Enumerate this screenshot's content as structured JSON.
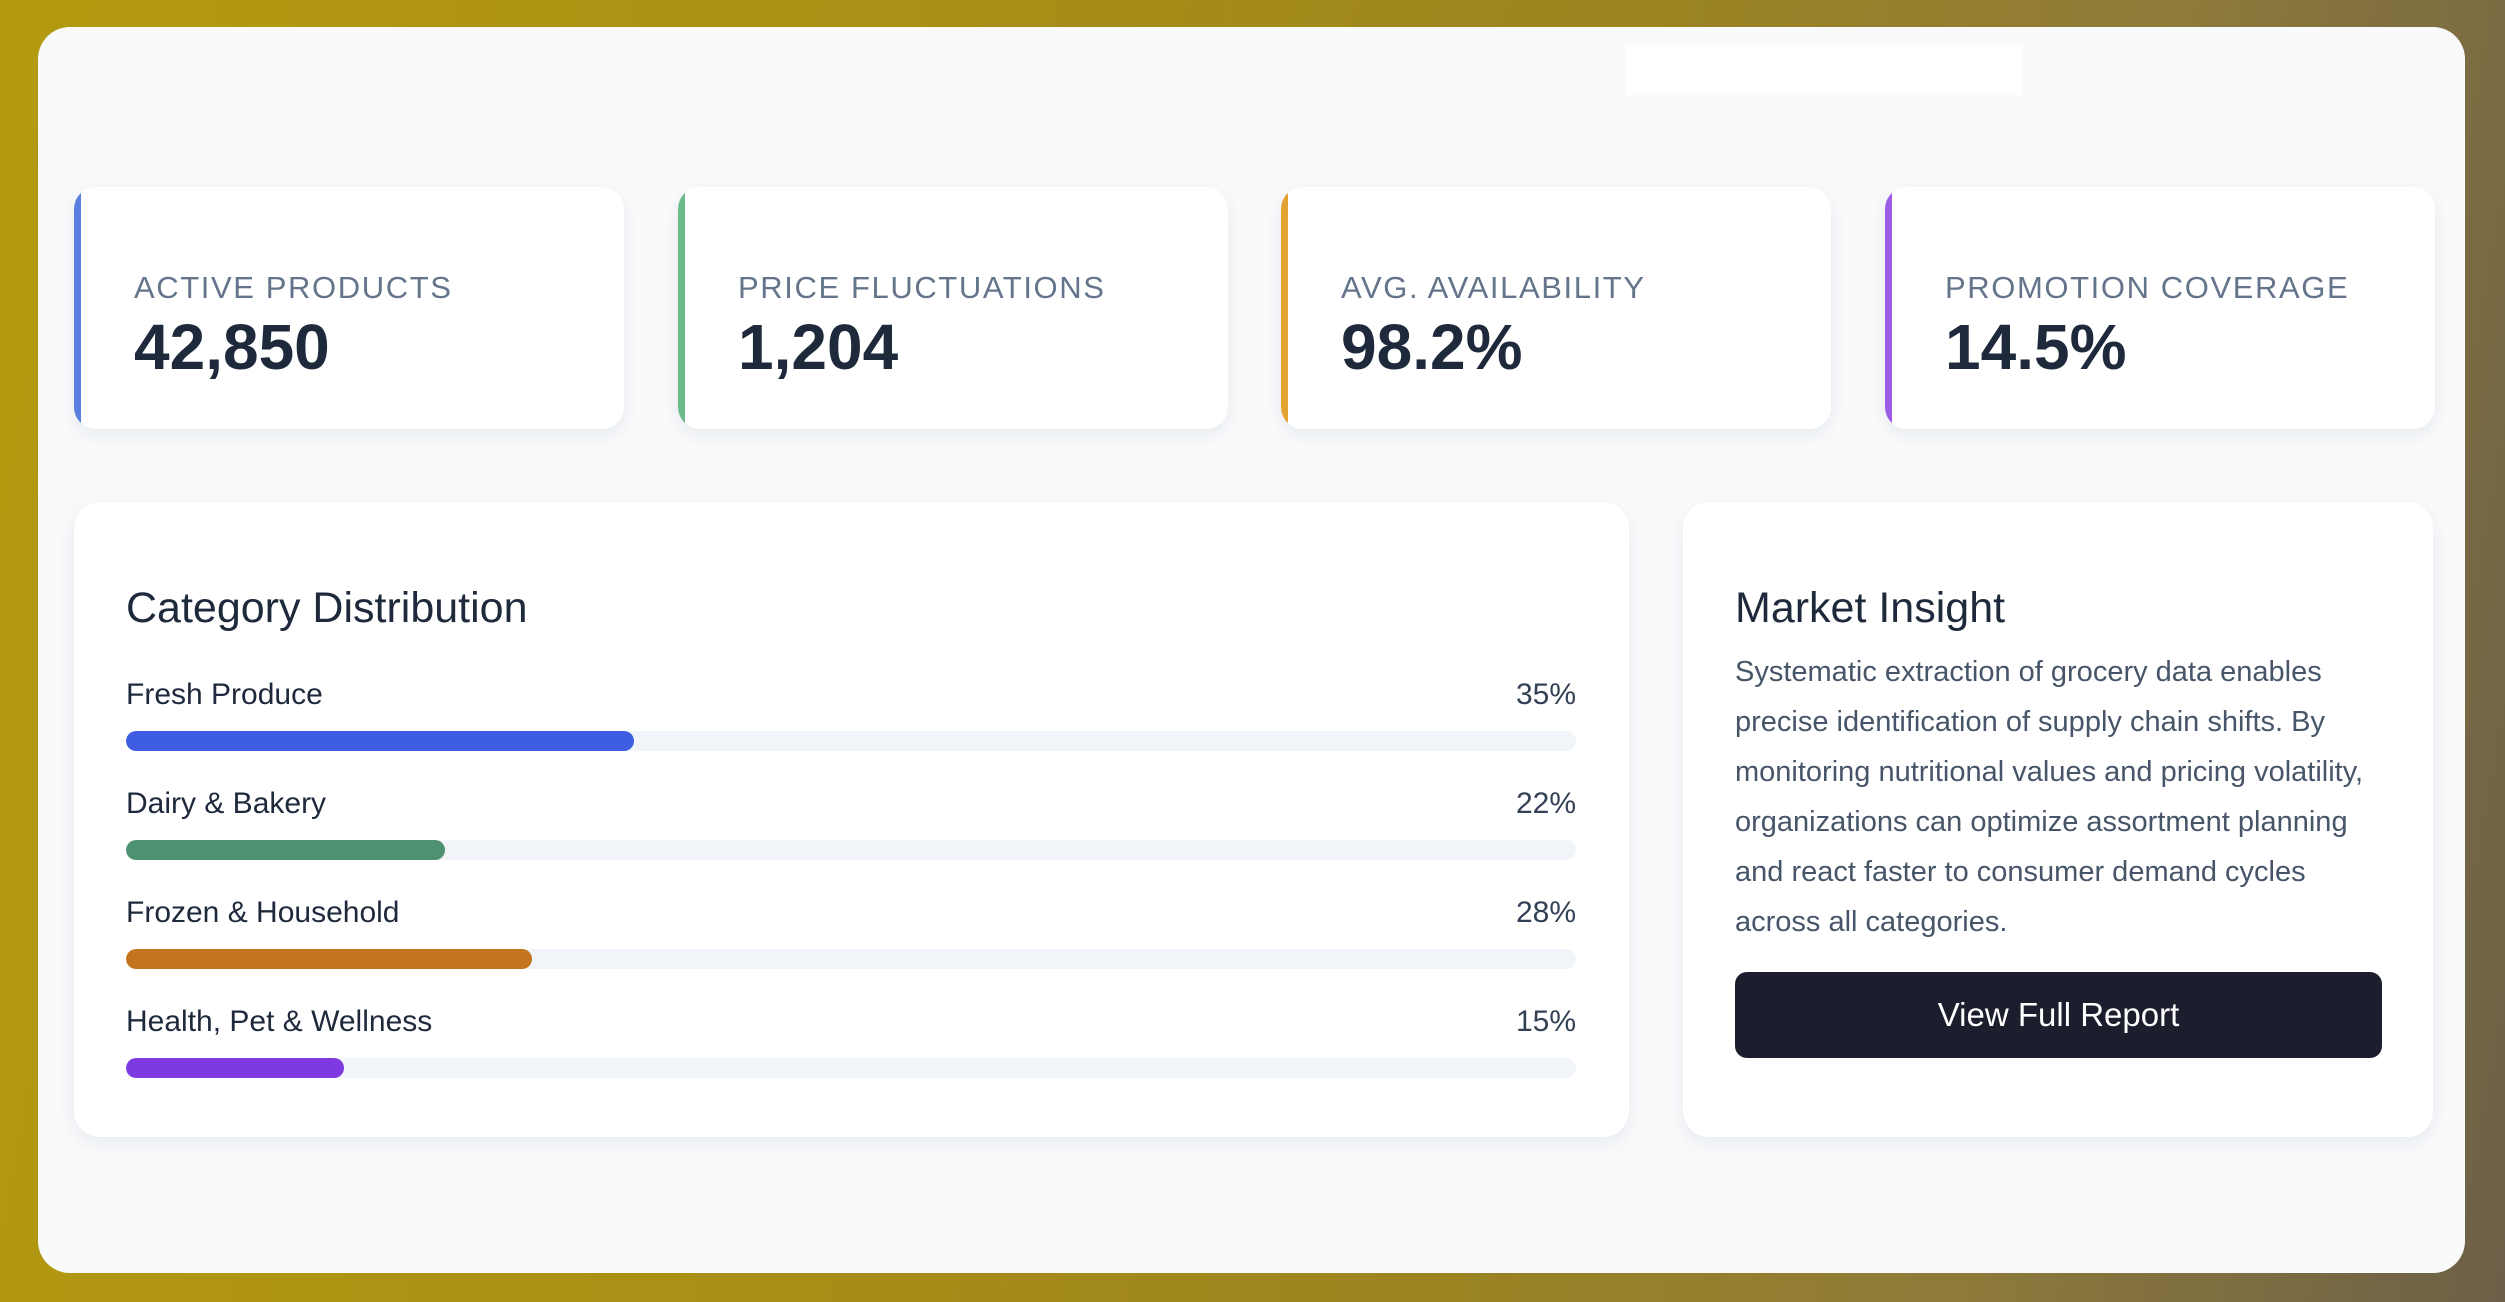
{
  "kpis": [
    {
      "label": "ACTIVE PRODUCTS",
      "value": "42,850",
      "accent": "#5b7fe0"
    },
    {
      "label": "PRICE FLUCTUATIONS",
      "value": "1,204",
      "accent": "#6dbb8a"
    },
    {
      "label": "AVG. AVAILABILITY",
      "value": "98.2%",
      "accent": "#e3a233"
    },
    {
      "label": "PROMOTION COVERAGE",
      "value": "14.5%",
      "accent": "#9b5ce8"
    }
  ],
  "category_distribution": {
    "title": "Category Distribution",
    "items": [
      {
        "name": "Fresh Produce",
        "percent_label": "35%",
        "fraction": 0.35,
        "color": "#3f5de0"
      },
      {
        "name": "Dairy & Bakery",
        "percent_label": "22%",
        "fraction": 0.22,
        "color": "#4e9170"
      },
      {
        "name": "Frozen & Household",
        "percent_label": "28%",
        "fraction": 0.28,
        "color": "#c4741f"
      },
      {
        "name": "Health, Pet & Wellness",
        "percent_label": "15%",
        "fraction": 0.15,
        "color": "#7e3ae0"
      }
    ]
  },
  "market_insight": {
    "title": "Market Insight",
    "body": "Systematic extraction of grocery data enables precise identification of supply chain shifts. By monitoring nutritional values and pricing volatility, organizations can optimize assortment planning and react faster to consumer demand cycles across all categories.",
    "button_label": "View Full Report"
  }
}
